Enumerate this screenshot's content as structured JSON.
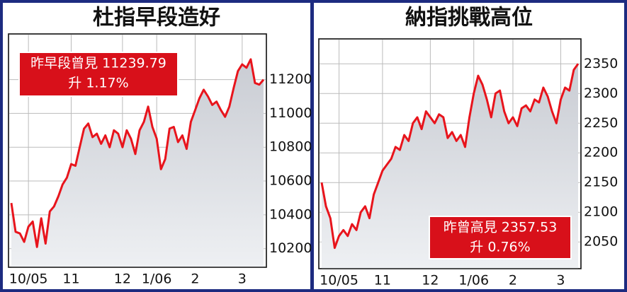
{
  "chart_data": [
    {
      "type": "line",
      "title": "杜指早段造好",
      "annotation": [
        "昨早段曾見 11239.79",
        "升 1.17%"
      ],
      "color": "#e8141c",
      "values": [
        10470,
        10300,
        10290,
        10240,
        10330,
        10360,
        10210,
        10380,
        10230,
        10420,
        10450,
        10510,
        10580,
        10620,
        10700,
        10690,
        10800,
        10910,
        10940,
        10860,
        10880,
        10820,
        10870,
        10800,
        10900,
        10880,
        10800,
        10900,
        10850,
        10760,
        10900,
        10950,
        11040,
        10920,
        10850,
        10670,
        10730,
        10910,
        10920,
        10830,
        10870,
        10790,
        10950,
        11020,
        11090,
        11140,
        11100,
        11050,
        11070,
        11020,
        10980,
        11040,
        11150,
        11250,
        11290,
        11270,
        11320,
        11180,
        11170,
        11200
      ],
      "xlim": [
        0,
        59
      ],
      "xticks": [
        {
          "value": 4,
          "label": "10/05"
        },
        {
          "value": 14,
          "label": "11"
        },
        {
          "value": 26,
          "label": "12"
        },
        {
          "value": 34,
          "label": "1/06"
        },
        {
          "value": 43,
          "label": "2"
        },
        {
          "value": 54,
          "label": "3"
        }
      ],
      "ylim": [
        10090,
        11470
      ],
      "yticks": [
        10200,
        10400,
        10600,
        10800,
        11000,
        11200
      ],
      "grid": true
    },
    {
      "type": "line",
      "title": "納指挑戰高位",
      "annotation": [
        "昨曾高見 2357.53",
        "升 0.76%"
      ],
      "color": "#e8141c",
      "values": [
        2150,
        2110,
        2090,
        2040,
        2060,
        2070,
        2060,
        2080,
        2070,
        2100,
        2110,
        2090,
        2130,
        2150,
        2170,
        2180,
        2190,
        2210,
        2205,
        2230,
        2220,
        2250,
        2260,
        2240,
        2270,
        2260,
        2250,
        2265,
        2260,
        2225,
        2235,
        2220,
        2230,
        2210,
        2260,
        2300,
        2330,
        2315,
        2290,
        2260,
        2300,
        2305,
        2270,
        2250,
        2260,
        2245,
        2275,
        2280,
        2270,
        2290,
        2285,
        2310,
        2295,
        2270,
        2250,
        2290,
        2310,
        2305,
        2340,
        2350
      ],
      "xlim": [
        0,
        59
      ],
      "xticks": [
        {
          "value": 4,
          "label": "10/05"
        },
        {
          "value": 14,
          "label": "11"
        },
        {
          "value": 25,
          "label": "12"
        },
        {
          "value": 35,
          "label": "1/06"
        },
        {
          "value": 44,
          "label": "2"
        },
        {
          "value": 55,
          "label": "3"
        }
      ],
      "ylim": [
        2005,
        2392
      ],
      "yticks": [
        2050,
        2100,
        2150,
        2200,
        2250,
        2300,
        2350
      ],
      "grid": true
    }
  ]
}
